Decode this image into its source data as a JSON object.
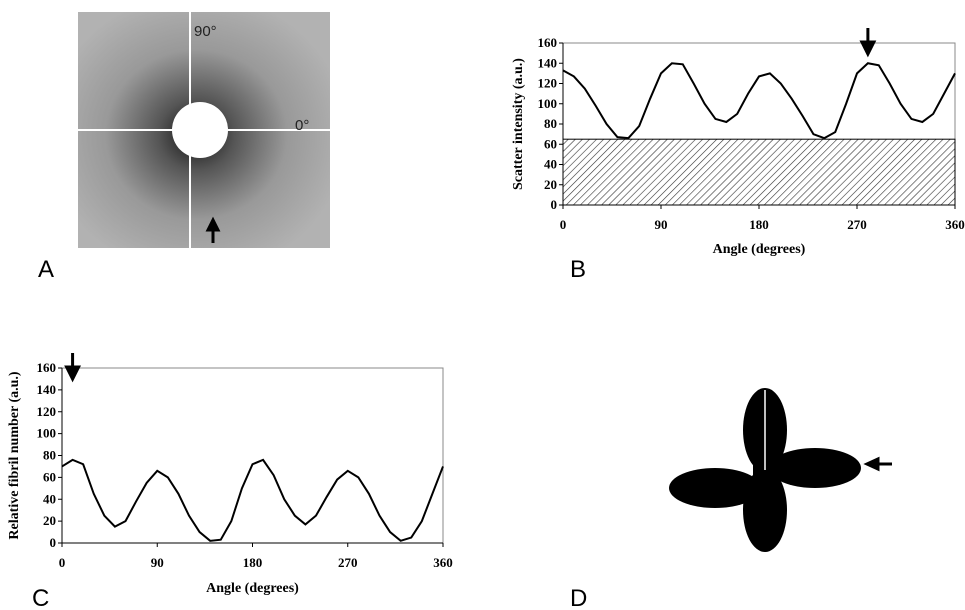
{
  "panels": {
    "A": {
      "label": "A",
      "vertical_mark": "90°",
      "horizontal_mark": "0°"
    },
    "B": {
      "label": "B"
    },
    "C": {
      "label": "C"
    },
    "D": {
      "label": "D"
    }
  },
  "chart_data": [
    {
      "type": "line",
      "x_label": "Angle (degrees)",
      "y_label": "Scatter intensity (a.u.)",
      "x": [
        0,
        10,
        20,
        30,
        40,
        50,
        60,
        70,
        80,
        90,
        100,
        110,
        120,
        130,
        140,
        150,
        160,
        170,
        180,
        190,
        200,
        210,
        220,
        230,
        240,
        250,
        260,
        270,
        280,
        290,
        300,
        310,
        320,
        330,
        340,
        350,
        360
      ],
      "values": [
        133,
        127,
        115,
        98,
        80,
        67,
        66,
        78,
        105,
        130,
        140,
        139,
        120,
        100,
        85,
        82,
        90,
        110,
        127,
        130,
        120,
        105,
        88,
        70,
        66,
        72,
        100,
        130,
        140,
        138,
        120,
        100,
        85,
        82,
        90,
        110,
        130
      ],
      "color": "#000000",
      "baseline": 65,
      "arrow_x": 280,
      "xlim": [
        0,
        360
      ],
      "xticks": [
        0,
        90,
        180,
        270,
        360
      ],
      "ylim": [
        0,
        160
      ],
      "yticks": [
        0,
        20,
        40,
        60,
        80,
        100,
        120,
        140,
        160
      ]
    },
    {
      "type": "line",
      "x_label": "Angle (degrees)",
      "y_label": "Relative fibril number (a.u.)",
      "x": [
        0,
        10,
        20,
        30,
        40,
        50,
        60,
        70,
        80,
        90,
        100,
        110,
        120,
        130,
        140,
        150,
        160,
        170,
        180,
        190,
        200,
        210,
        220,
        230,
        240,
        250,
        260,
        270,
        280,
        290,
        300,
        310,
        320,
        330,
        340,
        350,
        360
      ],
      "values": [
        70,
        76,
        72,
        45,
        25,
        15,
        20,
        38,
        55,
        66,
        60,
        45,
        25,
        10,
        2,
        3,
        20,
        50,
        72,
        76,
        62,
        40,
        25,
        17,
        25,
        42,
        58,
        66,
        60,
        45,
        25,
        10,
        2,
        5,
        20,
        45,
        70
      ],
      "color": "#000000",
      "arrow_x": 10,
      "xlim": [
        0,
        360
      ],
      "xticks": [
        0,
        90,
        180,
        270,
        360
      ],
      "ylim": [
        0,
        160
      ],
      "yticks": [
        0,
        20,
        40,
        60,
        80,
        100,
        120,
        140,
        160
      ]
    }
  ]
}
